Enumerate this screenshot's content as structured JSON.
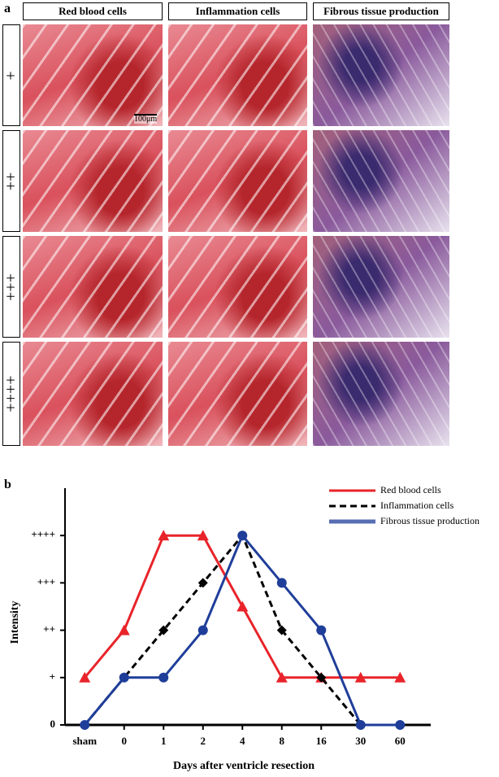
{
  "panel_a": {
    "label": "a",
    "columns": [
      "Red blood cells",
      "Inflammation cells",
      "Fibrous tissue production"
    ],
    "rows": [
      "+",
      "++",
      "+++",
      "++++"
    ],
    "scale_bar": "100μm"
  },
  "chart_data": {
    "type": "line",
    "panel_label": "b",
    "x_label": "Days after ventricle resection",
    "y_label": "Intensity",
    "categories": [
      "sham",
      "0",
      "1",
      "2",
      "4",
      "8",
      "16",
      "30",
      "60"
    ],
    "ylim": [
      0,
      5
    ],
    "yticks": [
      0,
      {
        "value": 1,
        "label": "+"
      },
      {
        "value": 2,
        "label": "++"
      },
      {
        "value": 3,
        "label": "+++"
      },
      {
        "value": 4,
        "label": "++++"
      }
    ],
    "legend": "top-right",
    "series": [
      {
        "name": "Red blood cells",
        "color": "#e8242a",
        "marker": "triangle",
        "dash": "solid",
        "values": [
          1,
          2,
          4,
          4,
          2.5,
          1,
          1,
          1,
          1
        ]
      },
      {
        "name": "Inflammation cells",
        "color": "#000000",
        "marker": "diamond",
        "dash": "dashed",
        "values": [
          0,
          1,
          2,
          3,
          4,
          2,
          1,
          0,
          0
        ]
      },
      {
        "name": "Fibrous tissue production",
        "color": "#1f3e9a",
        "marker": "circle",
        "dash": "solid",
        "values": [
          0,
          1,
          1,
          2,
          4,
          3,
          2,
          0,
          0
        ]
      }
    ]
  }
}
